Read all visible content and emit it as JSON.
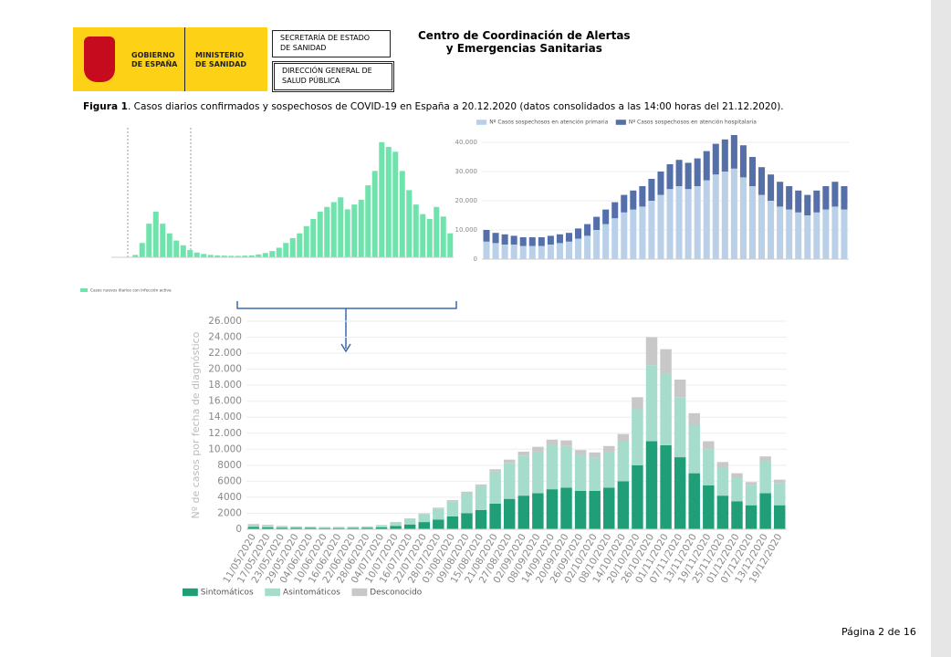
{
  "header": {
    "gov": [
      "GOBIERNO",
      "DE ESPAÑA"
    ],
    "ministry": [
      "MINISTERIO",
      "DE SANIDAD"
    ],
    "box1": [
      "SECRETARÍA DE ESTADO",
      "DE SANIDAD"
    ],
    "box2": [
      "DIRECCIÓN GENERAL DE",
      "SALUD PÚBLICA"
    ],
    "center": [
      "Centro de Coordinación de Alertas",
      "y Emergencias Sanitarias"
    ]
  },
  "caption": {
    "label": "Figura 1",
    "text": ". Casos diarios confirmados y sospechosos de COVID-19 en España a 20.12.2020 (datos consolidados a las 14:00 horas del 21.12.2020)."
  },
  "chart_data": [
    {
      "type": "bar",
      "ylim": [
        0,
        27000
      ],
      "series": [
        {
          "name": "Casos nuevos diarios con infección activa",
          "color": "#6ee3ac",
          "values": [
            0,
            0,
            0,
            500,
            3000,
            7000,
            9500,
            7000,
            5000,
            3500,
            2500,
            1500,
            1000,
            700,
            500,
            400,
            350,
            300,
            300,
            350,
            400,
            600,
            900,
            1300,
            2000,
            3000,
            4000,
            5000,
            6500,
            8000,
            9500,
            10500,
            11500,
            12500,
            10000,
            11000,
            12000,
            15000,
            18000,
            24000,
            23000,
            22000,
            18000,
            14000,
            11000,
            9000,
            8000,
            10500,
            8500,
            5000
          ]
        }
      ]
    },
    {
      "type": "bar",
      "ylim": [
        0,
        45000
      ],
      "yticks": [
        0,
        {
          "value": 10000,
          "label": "10.000"
        },
        {
          "value": 20000,
          "label": "20.000"
        },
        {
          "value": 30000,
          "label": "30.000"
        },
        {
          "value": 40000,
          "label": "40.000"
        }
      ],
      "series": [
        {
          "name": "Nº Casos sospechosos en atención primaria",
          "color": "#b9d0e8",
          "values": [
            6000,
            5500,
            5000,
            5000,
            4500,
            4500,
            4500,
            5000,
            5500,
            6000,
            7000,
            8000,
            10000,
            12000,
            14000,
            16000,
            17000,
            18000,
            20000,
            22000,
            24000,
            25000,
            24000,
            25000,
            27000,
            29000,
            30000,
            31000,
            28000,
            25000,
            22000,
            20000,
            18000,
            17000,
            16000,
            15000,
            16000,
            17000,
            18000,
            17000
          ]
        },
        {
          "name": "Nº Casos sospechosos en atención hospitalaria",
          "color": "#5570a9",
          "values": [
            4000,
            3500,
            3500,
            3000,
            3000,
            3000,
            3000,
            3000,
            3000,
            3000,
            3500,
            4000,
            4500,
            5000,
            5500,
            6000,
            6500,
            7000,
            7500,
            8000,
            8500,
            9000,
            9000,
            9500,
            10000,
            10500,
            11000,
            11500,
            11000,
            10000,
            9500,
            9000,
            8500,
            8000,
            7500,
            7000,
            7500,
            8000,
            8500,
            8000
          ]
        }
      ]
    },
    {
      "type": "bar",
      "ylabel": "Nº de casos por fecha de diagnóstico",
      "ylim": [
        0,
        26000
      ],
      "yticks": [
        0,
        {
          "value": 2000,
          "label": "2000"
        },
        {
          "value": 4000,
          "label": "4000"
        },
        {
          "value": 6000,
          "label": "6000"
        },
        {
          "value": 8000,
          "label": "8000"
        },
        {
          "value": 10000,
          "label": "10.000"
        },
        {
          "value": 12000,
          "label": "12.000"
        },
        {
          "value": 14000,
          "label": "14.000"
        },
        {
          "value": 16000,
          "label": "16.000"
        },
        {
          "value": 18000,
          "label": "18.000"
        },
        {
          "value": 20000,
          "label": "20.000"
        },
        {
          "value": 22000,
          "label": "22.000"
        },
        {
          "value": 24000,
          "label": "24.000"
        },
        {
          "value": 26000,
          "label": "26.000"
        }
      ],
      "categories": [
        "11/05/2020",
        "17/05/2020",
        "23/05/2020",
        "29/05/2020",
        "04/06/2020",
        "10/06/2020",
        "16/06/2020",
        "22/06/2020",
        "28/06/2020",
        "04/07/2020",
        "10/07/2020",
        "16/07/2020",
        "22/07/2020",
        "28/07/2020",
        "03/08/2020",
        "09/08/2020",
        "15/08/2020",
        "21/08/2020",
        "27/08/2020",
        "02/09/2020",
        "08/09/2020",
        "14/09/2020",
        "20/09/2020",
        "26/09/2020",
        "02/10/2020",
        "08/10/2020",
        "14/10/2020",
        "20/10/2020",
        "26/10/2020",
        "01/11/2020",
        "07/11/2020",
        "13/11/2020",
        "19/11/2020",
        "25/11/2020",
        "01/12/2020",
        "07/12/2020",
        "13/12/2020",
        "19/12/2020"
      ],
      "series": [
        {
          "name": "Sintomáticos",
          "color": "#1f9e78",
          "values": [
            300,
            250,
            200,
            180,
            170,
            150,
            150,
            160,
            180,
            250,
            400,
            600,
            900,
            1200,
            1600,
            2000,
            2400,
            3200,
            3800,
            4200,
            4500,
            5000,
            5200,
            4800,
            4800,
            5200,
            6000,
            8000,
            11000,
            10500,
            9000,
            7000,
            5500,
            4200,
            3500,
            3000,
            4500,
            3000
          ]
        },
        {
          "name": "Asintomáticos",
          "color": "#a6dccb",
          "values": [
            150,
            150,
            120,
            100,
            100,
            100,
            120,
            130,
            150,
            250,
            450,
            700,
            1000,
            1400,
            1900,
            2500,
            3000,
            4000,
            4500,
            5000,
            5200,
            5500,
            5200,
            4500,
            4200,
            4500,
            5000,
            7000,
            9500,
            9000,
            7500,
            6000,
            4500,
            3500,
            3000,
            2500,
            4000,
            2800
          ]
        },
        {
          "name": "Desconocido",
          "color": "#c8c8c8",
          "values": [
            200,
            150,
            100,
            80,
            60,
            50,
            40,
            30,
            30,
            30,
            50,
            60,
            80,
            100,
            150,
            200,
            200,
            300,
            400,
            500,
            600,
            700,
            700,
            600,
            600,
            700,
            900,
            1500,
            3500,
            3000,
            2200,
            1500,
            1000,
            700,
            500,
            400,
            600,
            400
          ]
        }
      ]
    }
  ],
  "footer": "Página 2 de 16"
}
